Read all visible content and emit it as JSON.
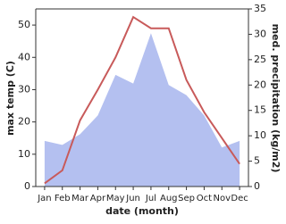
{
  "chart_data": {
    "type": "line-area",
    "xlabel": "date (month)",
    "ylabel": "max temp (C)",
    "y2label": "med. precipitation (kg/m2)",
    "categories": [
      "Jan",
      "Feb",
      "Mar",
      "Apr",
      "May",
      "Jun",
      "Jul",
      "Aug",
      "Sep",
      "Oct",
      "Nov",
      "Dec"
    ],
    "series": [
      {
        "name": "max temp",
        "color": "#c85a5a",
        "type": "line",
        "values": [
          1,
          5,
          20.5,
          30,
          40,
          52.5,
          49,
          49,
          33,
          23,
          15,
          7
        ]
      },
      {
        "name": "med. precipitation",
        "color": "#b4c0f0",
        "type": "area",
        "axis": "y2",
        "values": [
          9,
          8.2,
          10.3,
          14,
          22,
          20.3,
          30.2,
          20,
          18,
          14,
          7.7,
          9
        ]
      }
    ],
    "ylim": [
      0,
      55
    ],
    "yticks": [
      0,
      10,
      20,
      30,
      40,
      50
    ],
    "y2lim": [
      0,
      35
    ],
    "y2ticks": [
      0,
      5,
      10,
      15,
      20,
      25,
      30,
      35
    ]
  }
}
